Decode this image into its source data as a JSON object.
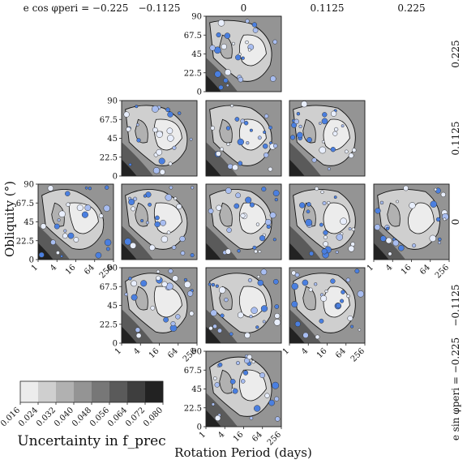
{
  "chart_data": {
    "type": "contour-grid",
    "col_param": "e cos φ_peri",
    "row_param": "e sin φ_peri",
    "col_values": [
      -0.225,
      -0.1125,
      0,
      0.1125,
      0.225
    ],
    "row_values": [
      0.225,
      0.1125,
      0,
      -0.1125,
      -0.225
    ],
    "col_headers": [
      "e cos φperi = −0.225",
      "−0.1125",
      "0",
      "0.1125",
      "0.225"
    ],
    "row_headers": [
      "0.225",
      "0.1125",
      "0",
      "−0.1125",
      "e sin φperi = −0.225"
    ],
    "present_panels": [
      [
        0,
        2
      ],
      [
        1,
        1
      ],
      [
        1,
        2
      ],
      [
        1,
        3
      ],
      [
        2,
        0
      ],
      [
        2,
        1
      ],
      [
        2,
        2
      ],
      [
        2,
        3
      ],
      [
        2,
        4
      ],
      [
        3,
        1
      ],
      [
        3,
        2
      ],
      [
        3,
        3
      ],
      [
        4,
        2
      ]
    ],
    "xlabel": "Rotation Period (days)",
    "ylabel": "Obliquity (°)",
    "x_ticks": [
      "1",
      "4",
      "16",
      "64",
      "256"
    ],
    "y_ticks": [
      "0",
      "22.5",
      "45",
      "67.5",
      "90"
    ],
    "xlim": [
      1,
      256
    ],
    "ylim": [
      0,
      90
    ],
    "colorbar": {
      "label": "Uncertainty in f_prec",
      "ticks": [
        "0.016",
        "0.024",
        "0.032",
        "0.040",
        "0.048",
        "0.056",
        "0.064",
        "0.072",
        "0.080"
      ],
      "colors": [
        "#ececec",
        "#cfcfcf",
        "#b1b1b1",
        "#949494",
        "#777777",
        "#5a5a5a",
        "#3e3e3e",
        "#222222"
      ]
    },
    "point_colors": [
      "#4a7fe0",
      "#a8bdf0",
      "#e8eefc"
    ]
  }
}
